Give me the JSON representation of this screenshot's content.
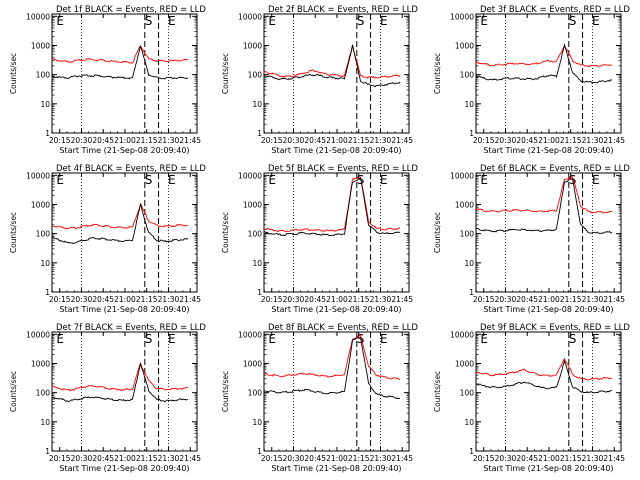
{
  "panels": [
    {
      "title": "Det 1f BLACK = Events, RED = LLD",
      "xlabel": "Start Time (21-Sep-08 20:09:40)",
      "ylabel": "Counts/sec",
      "black": [
        90,
        80,
        78,
        88,
        94,
        92,
        90,
        84,
        80,
        78,
        76,
        1000,
        100,
        78,
        76,
        78,
        78,
        80
      ],
      "red": [
        340,
        300,
        270,
        300,
        330,
        330,
        320,
        290,
        280,
        270,
        260,
        1000,
        350,
        300,
        290,
        300,
        310,
        320
      ],
      "spike_k": 11
    },
    {
      "title": "Det 2f BLACK = Events, RED = LLD",
      "xlabel": "Start Time (21-Sep-08 20:09:40)",
      "ylabel": "Counts/sec",
      "black": [
        95,
        80,
        70,
        72,
        80,
        90,
        100,
        92,
        80,
        76,
        72,
        1000,
        60,
        45,
        40,
        45,
        50,
        55
      ],
      "red": [
        125,
        110,
        90,
        85,
        95,
        115,
        140,
        120,
        100,
        95,
        90,
        1000,
        90,
        80,
        80,
        85,
        90,
        95
      ],
      "spike_k": 11
    },
    {
      "title": "Det 3f BLACK = Events, RED = LLD",
      "xlabel": "Start Time (21-Sep-08 20:09:40)",
      "ylabel": "Counts/sec",
      "black": [
        90,
        75,
        65,
        70,
        75,
        75,
        72,
        70,
        80,
        95,
        88,
        1000,
        120,
        60,
        55,
        55,
        60,
        65
      ],
      "red": [
        270,
        230,
        210,
        220,
        235,
        240,
        235,
        225,
        260,
        300,
        280,
        1000,
        300,
        210,
        200,
        200,
        210,
        220
      ],
      "spike_k": 11
    },
    {
      "title": "Det 4f BLACK = Events, RED = LLD",
      "xlabel": "Start Time (21-Sep-08 20:09:40)",
      "ylabel": "Counts/sec",
      "black": [
        70,
        60,
        48,
        50,
        60,
        70,
        68,
        62,
        58,
        55,
        60,
        1000,
        110,
        60,
        55,
        58,
        62,
        65
      ],
      "red": [
        190,
        170,
        150,
        160,
        180,
        200,
        190,
        175,
        165,
        160,
        170,
        1000,
        280,
        190,
        180,
        185,
        195,
        200
      ],
      "spike_k": 11
    },
    {
      "title": "Det 5f BLACK = Events, RED = LLD",
      "xlabel": "Start Time (21-Sep-08 20:09:40)",
      "ylabel": "Counts/sec",
      "black": [
        110,
        100,
        90,
        95,
        100,
        105,
        100,
        95,
        90,
        92,
        100,
        6000,
        8000,
        200,
        110,
        100,
        105,
        110
      ],
      "red": [
        150,
        135,
        120,
        125,
        135,
        140,
        135,
        130,
        125,
        130,
        140,
        7000,
        9000,
        260,
        150,
        140,
        145,
        150
      ],
      "spike_k": 11
    },
    {
      "title": "Det 6f BLACK = Events, RED = LLD",
      "xlabel": "Start Time (21-Sep-08 20:09:40)",
      "ylabel": "Counts/sec",
      "black": [
        150,
        130,
        120,
        125,
        130,
        140,
        135,
        130,
        125,
        128,
        140,
        6000,
        7500,
        200,
        110,
        105,
        110,
        115
      ],
      "red": [
        700,
        620,
        580,
        600,
        620,
        640,
        630,
        600,
        580,
        600,
        620,
        7000,
        9000,
        900,
        560,
        540,
        550,
        560
      ],
      "spike_k": 11
    },
    {
      "title": "Det 7f BLACK = Events, RED = LLD",
      "xlabel": "Start Time (21-Sep-08 20:09:40)",
      "ylabel": "Counts/sec",
      "black": [
        70,
        60,
        52,
        58,
        66,
        70,
        66,
        60,
        56,
        54,
        58,
        1000,
        120,
        58,
        52,
        54,
        58,
        60
      ],
      "red": [
        160,
        140,
        120,
        135,
        160,
        170,
        160,
        140,
        130,
        125,
        135,
        1000,
        260,
        140,
        130,
        135,
        140,
        145
      ],
      "spike_k": 11
    },
    {
      "title": "Det 8f BLACK = Events, RED = LLD",
      "xlabel": "Start Time (21-Sep-08 20:09:40)",
      "ylabel": "Counts/sec",
      "black": [
        120,
        110,
        100,
        105,
        115,
        125,
        115,
        100,
        95,
        100,
        110,
        6000,
        8000,
        200,
        90,
        75,
        70,
        65
      ],
      "red": [
        450,
        400,
        370,
        390,
        420,
        450,
        420,
        380,
        360,
        380,
        420,
        7000,
        9000,
        800,
        400,
        340,
        310,
        290
      ],
      "spike_k": 11
    },
    {
      "title": "Det 9f BLACK = Events, RED = LLD",
      "xlabel": "Start Time (21-Sep-08 20:09:40)",
      "ylabel": "Counts/sec",
      "black": [
        200,
        170,
        150,
        155,
        170,
        200,
        230,
        190,
        150,
        140,
        150,
        1200,
        160,
        110,
        100,
        105,
        110,
        115
      ],
      "red": [
        500,
        450,
        400,
        420,
        450,
        520,
        600,
        480,
        400,
        380,
        400,
        1500,
        420,
        300,
        290,
        300,
        310,
        320
      ],
      "spike_k": 11
    }
  ],
  "chart_data": {
    "type": "line",
    "layout": "3x3 grid",
    "y_scale": "log",
    "ylim": [
      1,
      12000
    ],
    "x_ticks": [
      "20:15",
      "20:30",
      "20:45",
      "21:00",
      "21:15",
      "21:30",
      "21:45"
    ],
    "x_tick_minutes": [
      5.33,
      20.33,
      35.33,
      50.33,
      65.33,
      80.33,
      95.33
    ],
    "x_range_minutes": [
      0,
      100
    ],
    "y_ticks": [
      "1",
      "10",
      "100",
      "1000",
      "10000"
    ],
    "dotted_lines_minutes": [
      20.33,
      80.33
    ],
    "dashed_lines_minutes": [
      64,
      73.5
    ],
    "markers": [
      {
        "label": "E",
        "at_minutes": 3
      },
      {
        "label": "S",
        "at_minutes": 64
      },
      {
        "label": "E",
        "at_minutes": 80
      }
    ],
    "series": [
      {
        "name": "BLACK = Events",
        "color": "#000000"
      },
      {
        "name": "RED = LLD",
        "color": "#ff0000"
      }
    ],
    "sample_step_minutes": 5.55
  },
  "colors": {
    "events": "#000000",
    "lld": "#ff0000",
    "axes": "#000000",
    "background": "#ffffff"
  }
}
